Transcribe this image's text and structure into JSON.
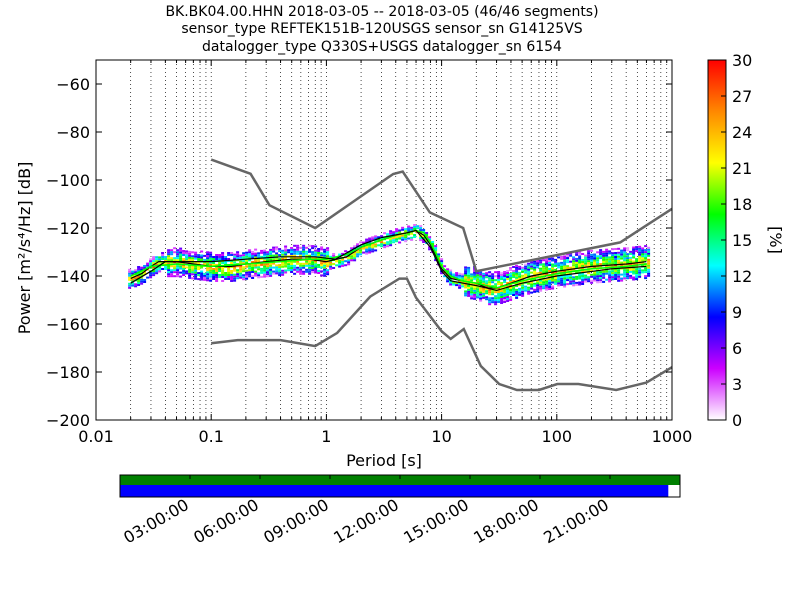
{
  "chart_data": {
    "type": "heatmap",
    "title_lines": [
      "BK.BK04.00.HHN   2018-03-05 -- 2018-03-05  (46/46 segments)",
      "sensor_type REFTEK151B-120USGS sensor_sn G14125VS",
      "datalogger_type Q330S+USGS datalogger_sn 6154"
    ],
    "xlabel": "Period [s]",
    "ylabel": "Power [m²/s⁴/Hz] [dB]",
    "xscale": "log",
    "xlim": [
      0.01,
      1000
    ],
    "ylim": [
      -200,
      -50
    ],
    "x_ticks": [
      {
        "value": 0.01,
        "label": "0.01"
      },
      {
        "value": 0.1,
        "label": "0.1"
      },
      {
        "value": 1,
        "label": "1"
      },
      {
        "value": 10,
        "label": "10"
      },
      {
        "value": 100,
        "label": "100"
      },
      {
        "value": 1000,
        "label": "1000"
      }
    ],
    "y_ticks": [
      {
        "value": -60,
        "label": "−60"
      },
      {
        "value": -80,
        "label": "−80"
      },
      {
        "value": -100,
        "label": "−100"
      },
      {
        "value": -120,
        "label": "−120"
      },
      {
        "value": -140,
        "label": "−140"
      },
      {
        "value": -160,
        "label": "−160"
      },
      {
        "value": -180,
        "label": "−180"
      },
      {
        "value": -200,
        "label": "−200"
      }
    ],
    "grid": "dotted vertical lines at log subdivisions",
    "colorbar": {
      "label": "[%]",
      "range": [
        0,
        30
      ],
      "ticks": [
        {
          "value": 0,
          "label": "0"
        },
        {
          "value": 3,
          "label": "3"
        },
        {
          "value": 6,
          "label": "6"
        },
        {
          "value": 9,
          "label": "9"
        },
        {
          "value": 12,
          "label": "12"
        },
        {
          "value": 15,
          "label": "15"
        },
        {
          "value": 18,
          "label": "18"
        },
        {
          "value": 21,
          "label": "21"
        },
        {
          "value": 24,
          "label": "24"
        },
        {
          "value": 27,
          "label": "27"
        },
        {
          "value": 30,
          "label": "30"
        }
      ],
      "colors": [
        "#ffffff",
        "#cc00ff",
        "#0000ff",
        "#00ffff",
        "#00ff00",
        "#ffff00",
        "#ff8800",
        "#ff0000"
      ]
    },
    "noise_model_high": [
      [
        0.1,
        -91.5
      ],
      [
        0.22,
        -97.4
      ],
      [
        0.32,
        -110.5
      ],
      [
        0.8,
        -120
      ],
      [
        3.8,
        -97.5
      ],
      [
        4.6,
        -96.5
      ],
      [
        7.9,
        -113.5
      ],
      [
        15.4,
        -120
      ],
      [
        20,
        -138
      ],
      [
        354.8,
        -126
      ],
      [
        1000,
        -112
      ]
    ],
    "noise_model_low": [
      [
        0.1,
        -168
      ],
      [
        0.17,
        -166.7
      ],
      [
        0.4,
        -166.7
      ],
      [
        0.8,
        -169.2
      ],
      [
        1.24,
        -163.7
      ],
      [
        2.4,
        -148.6
      ],
      [
        4.3,
        -141.1
      ],
      [
        5,
        -141.1
      ],
      [
        6,
        -149
      ],
      [
        10,
        -163
      ],
      [
        12,
        -166.2
      ],
      [
        15.6,
        -162.1
      ],
      [
        21.9,
        -177.5
      ],
      [
        31.6,
        -185
      ],
      [
        45,
        -187.5
      ],
      [
        70,
        -187.5
      ],
      [
        101,
        -185
      ],
      [
        154,
        -185
      ],
      [
        328,
        -187.5
      ],
      [
        600,
        -184.4
      ],
      [
        1000,
        -178
      ]
    ],
    "series": [
      {
        "role": "mode",
        "color": "#000000",
        "points": [
          [
            0.02,
            -141
          ],
          [
            0.025,
            -139
          ],
          [
            0.03,
            -136
          ],
          [
            0.035,
            -134
          ],
          [
            0.05,
            -134
          ],
          [
            0.07,
            -135
          ],
          [
            0.1,
            -136
          ],
          [
            0.15,
            -136
          ],
          [
            0.2,
            -135
          ],
          [
            0.3,
            -134
          ],
          [
            0.5,
            -133
          ],
          [
            0.7,
            -133
          ],
          [
            1,
            -134
          ],
          [
            1.5,
            -132
          ],
          [
            2,
            -128
          ],
          [
            3,
            -125
          ],
          [
            4,
            -123
          ],
          [
            5,
            -122
          ],
          [
            6,
            -121
          ],
          [
            7,
            -123
          ],
          [
            8,
            -127
          ],
          [
            9,
            -132
          ],
          [
            10,
            -137
          ],
          [
            12,
            -141
          ],
          [
            15,
            -142
          ],
          [
            20,
            -143
          ],
          [
            25,
            -145
          ],
          [
            30,
            -145
          ],
          [
            40,
            -143
          ],
          [
            60,
            -140
          ],
          [
            100,
            -138
          ],
          [
            200,
            -136
          ],
          [
            400,
            -135
          ],
          [
            600,
            -134
          ]
        ]
      },
      {
        "role": "mean",
        "color": "#00ff00",
        "points": [
          [
            0.02,
            -140
          ],
          [
            0.03,
            -136
          ],
          [
            0.05,
            -135
          ],
          [
            0.1,
            -136
          ],
          [
            0.2,
            -135
          ],
          [
            0.4,
            -134
          ],
          [
            0.7,
            -133
          ],
          [
            1,
            -133
          ],
          [
            1.5,
            -131
          ],
          [
            2,
            -128
          ],
          [
            3,
            -125
          ],
          [
            4,
            -123
          ],
          [
            5,
            -122
          ],
          [
            6,
            -121
          ],
          [
            7,
            -122
          ],
          [
            8,
            -126
          ],
          [
            9,
            -131
          ],
          [
            10,
            -136
          ],
          [
            12,
            -140
          ],
          [
            15,
            -142
          ],
          [
            20,
            -143
          ],
          [
            30,
            -145
          ],
          [
            50,
            -142
          ],
          [
            100,
            -139
          ],
          [
            200,
            -137
          ],
          [
            400,
            -136
          ],
          [
            600,
            -135
          ]
        ]
      },
      {
        "role": "median",
        "color": "#000000",
        "points": [
          [
            0.02,
            -143
          ],
          [
            0.03,
            -138
          ],
          [
            0.04,
            -134
          ],
          [
            0.06,
            -134
          ],
          [
            0.1,
            -134
          ],
          [
            0.2,
            -133
          ],
          [
            0.4,
            -132
          ],
          [
            0.8,
            -132
          ],
          [
            1.2,
            -133
          ],
          [
            2,
            -127
          ],
          [
            3,
            -124
          ],
          [
            5,
            -122
          ],
          [
            6,
            -121
          ],
          [
            8,
            -128
          ],
          [
            10,
            -138
          ],
          [
            12,
            -142
          ],
          [
            20,
            -144
          ],
          [
            30,
            -146
          ],
          [
            50,
            -143
          ],
          [
            100,
            -140
          ],
          [
            300,
            -137
          ],
          [
            600,
            -136
          ]
        ]
      }
    ],
    "time_axis": {
      "labels": [
        "03:00:00",
        "06:00:00",
        "09:00:00",
        "12:00:00",
        "15:00:00",
        "18:00:00",
        "21:00:00"
      ],
      "hours": [
        3,
        6,
        9,
        12,
        15,
        18,
        21
      ],
      "range_hours": [
        0,
        24
      ],
      "data_coverage_end_hours": 23.5,
      "colors": {
        "top": "#008000",
        "bottom": "#0000ff"
      }
    }
  }
}
